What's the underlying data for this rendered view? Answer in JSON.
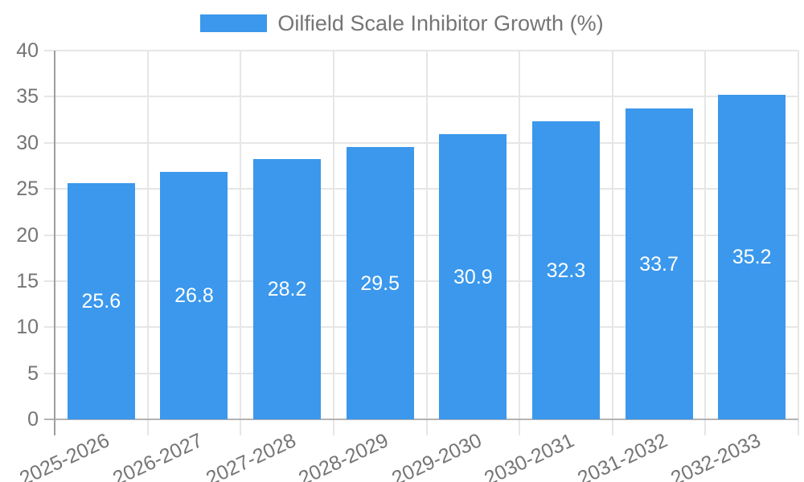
{
  "legend": {
    "label": "Oilfield Scale Inhibitor Growth (%)"
  },
  "chart_data": {
    "type": "bar",
    "title": "Oilfield Scale Inhibitor Growth (%)",
    "categories": [
      "2025-2026",
      "2026-2027",
      "2027-2028",
      "2028-2029",
      "2029-2030",
      "2030-2031",
      "2031-2032",
      "2032-2033"
    ],
    "values": [
      25.6,
      26.8,
      28.2,
      29.5,
      30.9,
      32.3,
      33.7,
      35.2
    ],
    "value_labels": [
      "25.6",
      "26.8",
      "28.2",
      "29.5",
      "30.9",
      "32.3",
      "33.7",
      "35.2"
    ],
    "xlabel": "",
    "ylabel": "",
    "ylim": [
      0,
      40
    ],
    "ytick_step": 5,
    "ytick_labels": [
      "0",
      "5",
      "10",
      "15",
      "20",
      "25",
      "30",
      "35",
      "40"
    ],
    "grid": true,
    "legend_position": "top-center",
    "colors": {
      "bar": "#3b98ec",
      "bar_label": "#ffffff",
      "grid": "#e6e6e6",
      "axis_text": "#757575",
      "y_axis_line": "#9e9e9e",
      "x_axis_line": "#b3b3b3"
    }
  }
}
